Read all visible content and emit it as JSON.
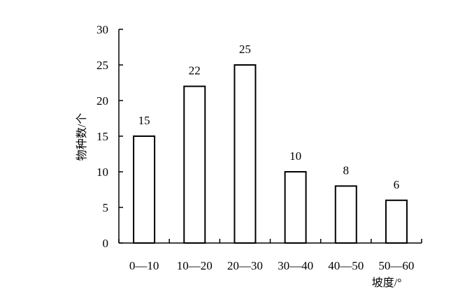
{
  "chart_data": {
    "type": "bar",
    "categories": [
      "0—10",
      "10—20",
      "20—30",
      "30—40",
      "40—50",
      "50—60"
    ],
    "values": [
      15,
      22,
      25,
      10,
      8,
      6
    ],
    "data_labels": [
      "15",
      "22",
      "25",
      "10",
      "8",
      "6"
    ],
    "title": "",
    "xlabel": "坡度/°",
    "ylabel": "物种数/个",
    "ylim": [
      0,
      30
    ],
    "yticks": [
      0,
      5,
      10,
      15,
      20,
      25,
      30
    ],
    "ytick_labels": [
      "0",
      "5",
      "10",
      "15",
      "20",
      "25",
      "30"
    ],
    "grid": false,
    "legend": "none",
    "colors": {
      "bar_fill": "#ffffff",
      "bar_stroke": "#000000",
      "text": "#000000"
    }
  }
}
